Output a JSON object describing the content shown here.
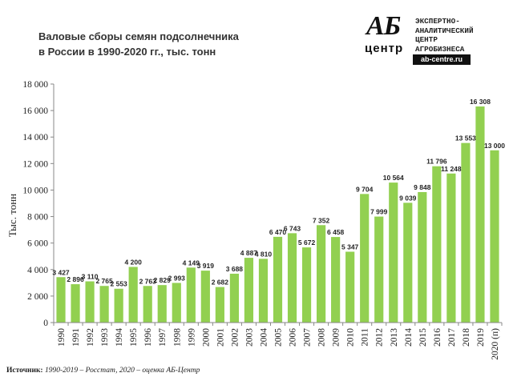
{
  "header": {
    "title_line1": "Валовые сборы семян подсолнечника",
    "title_line2": "в России в 1990-2020 гг., тыс. тонн"
  },
  "logo": {
    "mark_top": "АБ",
    "mark_bottom": "центр",
    "lines": [
      "ЭКСПЕРТНО-",
      "АНАЛИТИЧЕСКИЙ",
      "ЦЕНТР",
      "АГРОБИЗНЕСА"
    ],
    "url": "ab-centre.ru"
  },
  "source": {
    "label": "Источник:",
    "text": "1990-2019 – Росстат, 2020 – оценка АБ-Центр"
  },
  "colors": {
    "bar": "#92D050",
    "axis": "#888888"
  },
  "chart_data": {
    "type": "bar",
    "title": "Валовые сборы семян подсолнечника в России в 1990-2020 гг., тыс. тонн",
    "xlabel": "",
    "ylabel": "Тыс. тонн",
    "ylim": [
      0,
      18000
    ],
    "yticks": [
      0,
      2000,
      4000,
      6000,
      8000,
      10000,
      12000,
      14000,
      16000,
      18000
    ],
    "ytick_labels": [
      "0",
      "2 000",
      "4 000",
      "6 000",
      "8 000",
      "10 000",
      "12 000",
      "14 000",
      "16 000",
      "18 000"
    ],
    "grid": false,
    "categories": [
      "1990",
      "1991",
      "1992",
      "1993",
      "1994",
      "1995",
      "1996",
      "1997",
      "1998",
      "1999",
      "2000",
      "2001",
      "2002",
      "2003",
      "2004",
      "2005",
      "2006",
      "2007",
      "2008",
      "2009",
      "2010",
      "2011",
      "2012",
      "2013",
      "2014",
      "2015",
      "2016",
      "2017",
      "2018",
      "2019",
      "2020 (п)"
    ],
    "values": [
      3427,
      2896,
      3110,
      2765,
      2553,
      4200,
      2763,
      2829,
      2993,
      4149,
      3919,
      2682,
      3688,
      4887,
      4810,
      6470,
      6743,
      5672,
      7352,
      6458,
      5347,
      9704,
      7999,
      10564,
      9039,
      9848,
      11796,
      11248,
      13553,
      16308,
      13000
    ],
    "data_labels": [
      "3 427",
      "2 896",
      "3 110",
      "2 765",
      "2 553",
      "4 200",
      "2 763",
      "2 829",
      "2 993",
      "4 149",
      "3 919",
      "2 682",
      "3 688",
      "4 887",
      "4 810",
      "6 470",
      "6 743",
      "5 672",
      "7 352",
      "6 458",
      "5 347",
      "9 704",
      "7 999",
      "10 564",
      "9 039",
      "9 848",
      "11 796",
      "11 248",
      "13 553",
      "16 308",
      "13 000"
    ]
  }
}
